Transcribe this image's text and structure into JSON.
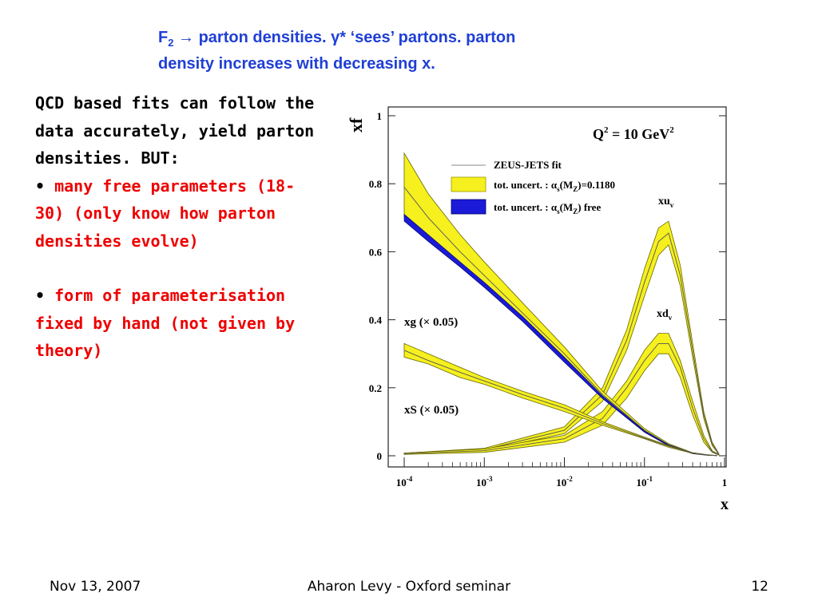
{
  "title": {
    "line1_pre": "F",
    "line1_sub": "2",
    "line1_arrow": "→",
    "line1_rest": " parton densities. γ* ‘sees’ partons. parton",
    "line2": "density increases with decreasing x."
  },
  "body": {
    "intro": "QCD based fits can follow the data accurately, yield parton densities.  BUT:",
    "bullet_char": "•",
    "bullet1": "many free parameters (18-30) (only know how parton densities evolve)",
    "bullet2": "form of parameterisation fixed by hand (not given by theory)"
  },
  "footer": {
    "date": "Nov 13, 2007",
    "center": "Aharon Levy - Oxford seminar",
    "page": "12"
  },
  "colors": {
    "title": "#1f3fd6",
    "emphasis": "#ee0000",
    "band_fixed": "#f5f01e",
    "band_free": "#1a1ad8",
    "band_edge": "#666600"
  },
  "chart_data": {
    "type": "line",
    "xscale": "log",
    "xlabel": "x",
    "ylabel": "xf",
    "xlim": [
      0.0001,
      1
    ],
    "ylim": [
      0,
      1
    ],
    "xticks": [
      {
        "value": 0.0001,
        "base": "10",
        "exp": "-4"
      },
      {
        "value": 0.001,
        "base": "10",
        "exp": "-3"
      },
      {
        "value": 0.01,
        "base": "10",
        "exp": "-2"
      },
      {
        "value": 0.1,
        "base": "10",
        "exp": "-1"
      },
      {
        "value": 1,
        "base": "1",
        "exp": ""
      }
    ],
    "yticks": [
      {
        "value": 0,
        "label": "0"
      },
      {
        "value": 0.2,
        "label": "0.2"
      },
      {
        "value": 0.4,
        "label": "0.4"
      },
      {
        "value": 0.6,
        "label": "0.6"
      },
      {
        "value": 0.8,
        "label": "0.8"
      },
      {
        "value": 1,
        "label": "1"
      }
    ],
    "q2_label": {
      "pre": "Q",
      "sup": "2",
      "post": " = 10 GeV",
      "sup2": "2"
    },
    "legend": [
      {
        "label": "ZEUS-JETS fit",
        "style": "line"
      },
      {
        "label_pre": "tot. uncert. : α",
        "label_sub": "s",
        "label_mid": "(M",
        "label_sub2": "Z",
        "label_post": ")=0.1180",
        "style": "band_fixed"
      },
      {
        "label_pre": "tot. uncert. : α",
        "label_sub": "s",
        "label_mid": "(M",
        "label_sub2": "Z",
        "label_post": ") free",
        "style": "band_free"
      }
    ],
    "series": [
      {
        "name": "xu_v",
        "label_pre": "xu",
        "label_sub": "v",
        "x": [
          0.0001,
          0.001,
          0.01,
          0.03,
          0.06,
          0.1,
          0.15,
          0.2,
          0.28,
          0.4,
          0.55,
          0.7,
          0.85
        ],
        "lower": [
          0.005,
          0.015,
          0.065,
          0.16,
          0.31,
          0.47,
          0.59,
          0.62,
          0.5,
          0.29,
          0.11,
          0.03,
          0.004
        ],
        "center": [
          0.006,
          0.018,
          0.075,
          0.18,
          0.34,
          0.51,
          0.63,
          0.655,
          0.53,
          0.31,
          0.12,
          0.035,
          0.005
        ],
        "upper": [
          0.008,
          0.022,
          0.085,
          0.2,
          0.37,
          0.55,
          0.67,
          0.69,
          0.56,
          0.33,
          0.13,
          0.04,
          0.006
        ]
      },
      {
        "name": "xd_v",
        "label_pre": "xd",
        "label_sub": "v",
        "x": [
          0.0001,
          0.001,
          0.01,
          0.03,
          0.06,
          0.1,
          0.15,
          0.2,
          0.28,
          0.4,
          0.55,
          0.7,
          0.85
        ],
        "lower": [
          0.004,
          0.01,
          0.04,
          0.09,
          0.17,
          0.25,
          0.3,
          0.3,
          0.23,
          0.12,
          0.04,
          0.01,
          0.002
        ],
        "center": [
          0.006,
          0.015,
          0.05,
          0.11,
          0.2,
          0.28,
          0.33,
          0.33,
          0.26,
          0.14,
          0.05,
          0.012,
          0.003
        ],
        "upper": [
          0.008,
          0.02,
          0.06,
          0.13,
          0.22,
          0.31,
          0.36,
          0.36,
          0.28,
          0.16,
          0.06,
          0.015,
          0.004
        ]
      },
      {
        "name": "xg (× 0.05)",
        "label": "xg (× 0.05)",
        "x": [
          0.0001,
          0.0002,
          0.0005,
          0.001,
          0.003,
          0.01,
          0.03,
          0.1,
          0.2,
          0.4,
          0.6,
          0.8
        ],
        "lower": [
          0.7,
          0.64,
          0.56,
          0.5,
          0.4,
          0.28,
          0.17,
          0.07,
          0.03,
          0.007,
          0.002,
          0.0005
        ],
        "center": [
          0.79,
          0.7,
          0.6,
          0.53,
          0.42,
          0.3,
          0.18,
          0.075,
          0.033,
          0.008,
          0.002,
          0.0005
        ],
        "upper": [
          0.89,
          0.77,
          0.65,
          0.57,
          0.45,
          0.32,
          0.19,
          0.08,
          0.036,
          0.009,
          0.003,
          0.001
        ]
      },
      {
        "name": "xS (× 0.05)",
        "label": "xS (× 0.05)",
        "x": [
          0.0001,
          0.0002,
          0.0005,
          0.001,
          0.003,
          0.01,
          0.03,
          0.1,
          0.2,
          0.4,
          0.6,
          0.8
        ],
        "lower": [
          0.29,
          0.27,
          0.23,
          0.21,
          0.17,
          0.13,
          0.09,
          0.05,
          0.025,
          0.007,
          0.002,
          0.0005
        ],
        "center": [
          0.31,
          0.28,
          0.245,
          0.22,
          0.18,
          0.14,
          0.095,
          0.052,
          0.028,
          0.008,
          0.002,
          0.0005
        ],
        "upper": [
          0.33,
          0.3,
          0.26,
          0.23,
          0.19,
          0.15,
          0.1,
          0.055,
          0.03,
          0.009,
          0.003,
          0.001
        ]
      }
    ],
    "free_band": {
      "x": [
        0.0001,
        0.0002,
        0.0005,
        0.001,
        0.003,
        0.01,
        0.03,
        0.1,
        0.2,
        0.4,
        0.6,
        0.8
      ],
      "lower": [
        0.69,
        0.63,
        0.555,
        0.495,
        0.395,
        0.275,
        0.168,
        0.069,
        0.029,
        0.006,
        0.0015,
        0.0004
      ],
      "upper": [
        0.71,
        0.65,
        0.57,
        0.51,
        0.41,
        0.29,
        0.176,
        0.073,
        0.032,
        0.008,
        0.002,
        0.0005
      ]
    }
  }
}
